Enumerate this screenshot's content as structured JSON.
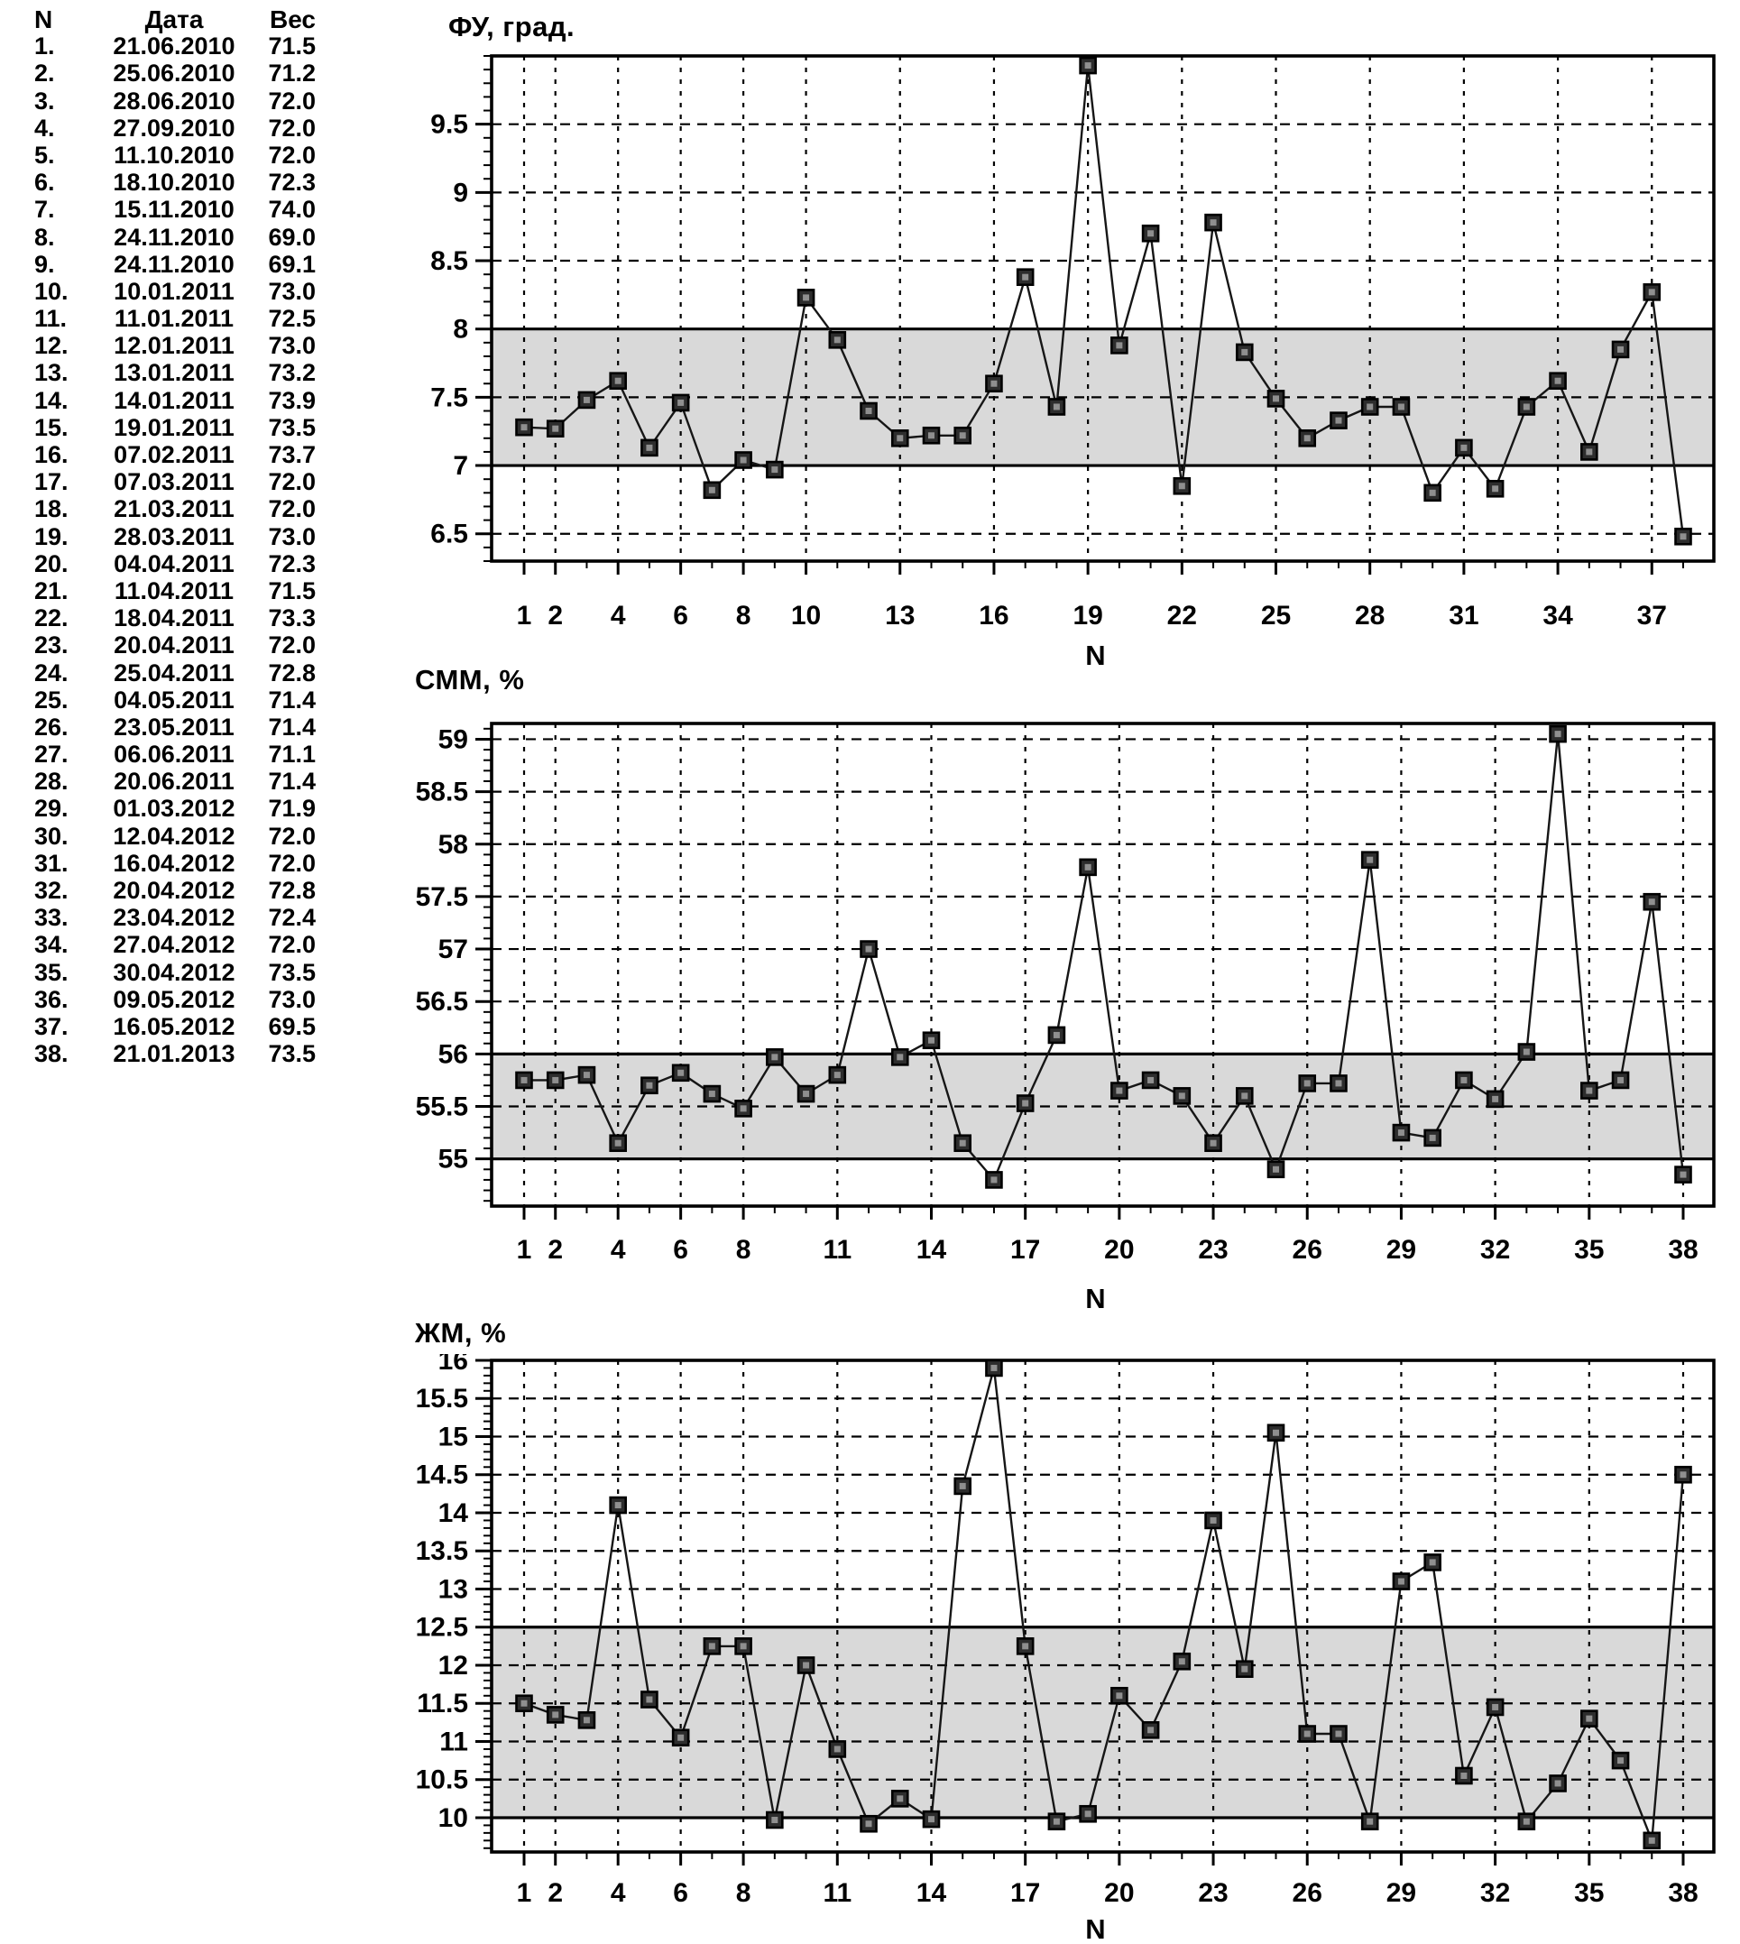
{
  "colors": {
    "band": "#d9d9d9",
    "line": "#161616",
    "marker_fill": "#2d2d2d",
    "marker_core": "#8f8f8f",
    "ink": "#000000"
  },
  "table": {
    "headers": [
      "N",
      "Дата",
      "Вес"
    ],
    "rows": [
      [
        "1.",
        "21.06.2010",
        "71.5"
      ],
      [
        "2.",
        "25.06.2010",
        "71.2"
      ],
      [
        "3.",
        "28.06.2010",
        "72.0"
      ],
      [
        "4.",
        "27.09.2010",
        "72.0"
      ],
      [
        "5.",
        "11.10.2010",
        "72.0"
      ],
      [
        "6.",
        "18.10.2010",
        "72.3"
      ],
      [
        "7.",
        "15.11.2010",
        "74.0"
      ],
      [
        "8.",
        "24.11.2010",
        "69.0"
      ],
      [
        "9.",
        "24.11.2010",
        "69.1"
      ],
      [
        "10.",
        "10.01.2011",
        "73.0"
      ],
      [
        "11.",
        "11.01.2011",
        "72.5"
      ],
      [
        "12.",
        "12.01.2011",
        "73.0"
      ],
      [
        "13.",
        "13.01.2011",
        "73.2"
      ],
      [
        "14.",
        "14.01.2011",
        "73.9"
      ],
      [
        "15.",
        "19.01.2011",
        "73.5"
      ],
      [
        "16.",
        "07.02.2011",
        "73.7"
      ],
      [
        "17.",
        "07.03.2011",
        "72.0"
      ],
      [
        "18.",
        "21.03.2011",
        "72.0"
      ],
      [
        "19.",
        "28.03.2011",
        "73.0"
      ],
      [
        "20.",
        "04.04.2011",
        "72.3"
      ],
      [
        "21.",
        "11.04.2011",
        "71.5"
      ],
      [
        "22.",
        "18.04.2011",
        "73.3"
      ],
      [
        "23.",
        "20.04.2011",
        "72.0"
      ],
      [
        "24.",
        "25.04.2011",
        "72.8"
      ],
      [
        "25.",
        "04.05.2011",
        "71.4"
      ],
      [
        "26.",
        "23.05.2011",
        "71.4"
      ],
      [
        "27.",
        "06.06.2011",
        "71.1"
      ],
      [
        "28.",
        "20.06.2011",
        "71.4"
      ],
      [
        "29.",
        "01.03.2012",
        "71.9"
      ],
      [
        "30.",
        "12.04.2012",
        "72.0"
      ],
      [
        "31.",
        "16.04.2012",
        "72.0"
      ],
      [
        "32.",
        "20.04.2012",
        "72.8"
      ],
      [
        "33.",
        "23.04.2012",
        "72.4"
      ],
      [
        "34.",
        "27.04.2012",
        "72.0"
      ],
      [
        "35.",
        "30.04.2012",
        "73.5"
      ],
      [
        "36.",
        "09.05.2012",
        "73.0"
      ],
      [
        "37.",
        "16.05.2012",
        "69.5"
      ],
      [
        "38.",
        "21.01.2013",
        "73.5"
      ]
    ]
  },
  "chart_data": [
    {
      "type": "line",
      "title": "ФУ, град.",
      "xlabel": "N",
      "x": [
        1,
        2,
        3,
        4,
        5,
        6,
        7,
        8,
        9,
        10,
        11,
        12,
        13,
        14,
        15,
        16,
        17,
        18,
        19,
        20,
        21,
        22,
        23,
        24,
        25,
        26,
        27,
        28,
        29,
        30,
        31,
        32,
        33,
        34,
        35,
        36,
        37,
        38
      ],
      "values": [
        7.28,
        7.27,
        7.48,
        7.62,
        7.13,
        7.46,
        6.82,
        7.04,
        6.97,
        8.23,
        7.92,
        7.4,
        7.2,
        7.22,
        7.22,
        7.6,
        8.38,
        7.43,
        9.93,
        7.88,
        8.7,
        6.85,
        8.78,
        7.83,
        7.49,
        7.2,
        7.33,
        7.43,
        7.43,
        6.8,
        7.13,
        6.83,
        7.43,
        7.62,
        7.1,
        7.85,
        8.27,
        6.48
      ],
      "ylim": [
        6.3,
        10.0
      ],
      "yticks": [
        6.5,
        7,
        7.5,
        8,
        8.5,
        9,
        9.5
      ],
      "band": [
        7,
        8
      ],
      "x_tick_positions": [
        1,
        2,
        4,
        6,
        8,
        10,
        13,
        16,
        19,
        22,
        25,
        28,
        31,
        34,
        37
      ],
      "grid": "dashed",
      "legend": "none"
    },
    {
      "type": "line",
      "title": "СММ, %",
      "xlabel": "N",
      "x": [
        1,
        2,
        3,
        4,
        5,
        6,
        7,
        8,
        9,
        10,
        11,
        12,
        13,
        14,
        15,
        16,
        17,
        18,
        19,
        20,
        21,
        22,
        23,
        24,
        25,
        26,
        27,
        28,
        29,
        30,
        31,
        32,
        33,
        34,
        35,
        36,
        37,
        38
      ],
      "values": [
        55.75,
        55.75,
        55.8,
        55.15,
        55.7,
        55.82,
        55.62,
        55.48,
        55.97,
        55.62,
        55.8,
        57.0,
        55.97,
        56.13,
        55.15,
        54.8,
        55.53,
        56.18,
        57.78,
        55.65,
        55.75,
        55.6,
        55.15,
        55.6,
        54.9,
        55.72,
        55.72,
        57.85,
        55.25,
        55.2,
        55.75,
        55.57,
        56.02,
        59.05,
        55.65,
        55.75,
        57.45,
        54.85
      ],
      "ylim": [
        54.55,
        59.15
      ],
      "yticks": [
        55,
        55.5,
        56,
        56.5,
        57,
        57.5,
        58,
        58.5,
        59
      ],
      "band": [
        55,
        56
      ],
      "x_tick_positions": [
        1,
        2,
        4,
        6,
        8,
        11,
        14,
        17,
        20,
        23,
        26,
        29,
        32,
        35,
        38
      ],
      "grid": "dashed",
      "legend": "none"
    },
    {
      "type": "line",
      "title": "ЖМ, %",
      "xlabel": "N",
      "x": [
        1,
        2,
        3,
        4,
        5,
        6,
        7,
        8,
        9,
        10,
        11,
        12,
        13,
        14,
        15,
        16,
        17,
        18,
        19,
        20,
        21,
        22,
        23,
        24,
        25,
        26,
        27,
        28,
        29,
        30,
        31,
        32,
        33,
        34,
        35,
        36,
        37,
        38
      ],
      "values": [
        11.5,
        11.35,
        11.28,
        14.1,
        11.55,
        11.05,
        12.25,
        12.25,
        9.97,
        12.0,
        10.9,
        9.92,
        10.25,
        9.98,
        14.35,
        15.9,
        12.25,
        9.95,
        10.05,
        11.6,
        11.15,
        12.05,
        13.9,
        11.95,
        15.05,
        11.1,
        11.1,
        9.95,
        13.1,
        13.35,
        10.55,
        11.45,
        9.95,
        10.45,
        11.3,
        10.75,
        9.7,
        14.5
      ],
      "ylim": [
        9.55,
        16.0
      ],
      "yticks": [
        10,
        10.5,
        11,
        11.5,
        12,
        12.5,
        13,
        13.5,
        14,
        14.5,
        15,
        15.5,
        16
      ],
      "band": [
        10,
        12.5
      ],
      "x_tick_positions": [
        1,
        2,
        4,
        6,
        8,
        11,
        14,
        17,
        20,
        23,
        26,
        29,
        32,
        35,
        38
      ],
      "grid": "dashed",
      "legend": "none"
    }
  ]
}
